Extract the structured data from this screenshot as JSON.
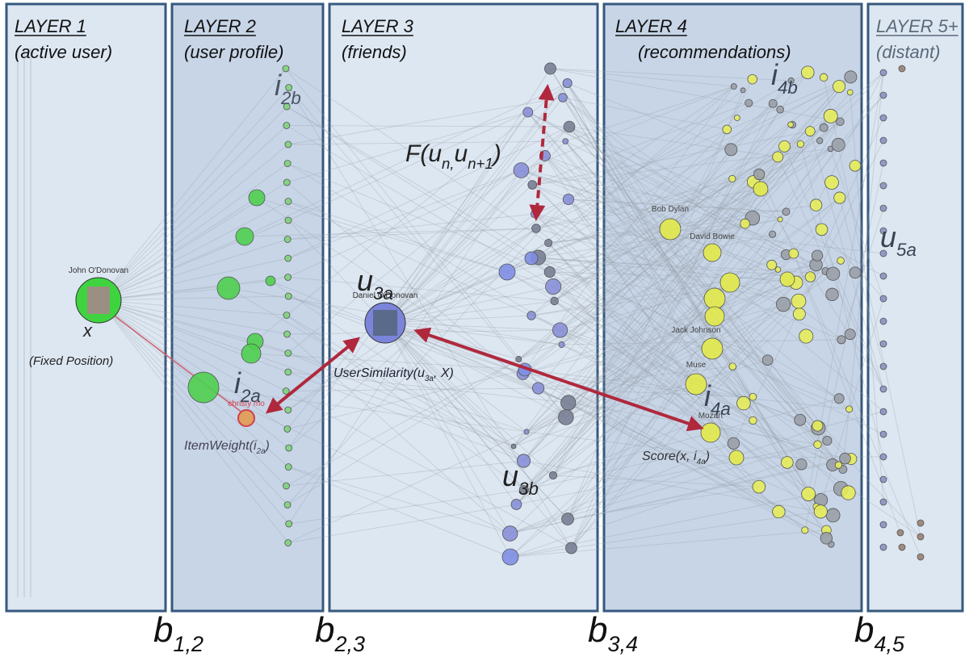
{
  "layers": [
    {
      "title": "LAYER 1",
      "subtitle": "(active user)"
    },
    {
      "title": "LAYER 2",
      "subtitle": "(user profile)"
    },
    {
      "title": "LAYER 3",
      "subtitle": "(friends)"
    },
    {
      "title": "LAYER 4",
      "subtitle": "(recommendations)"
    },
    {
      "title": "LAYER 5+",
      "subtitle": "(distant)"
    }
  ],
  "boundaries": [
    {
      "base": "b",
      "sub": "1,2"
    },
    {
      "base": "b",
      "sub": "2,3"
    },
    {
      "base": "b",
      "sub": "3,4"
    },
    {
      "base": "b",
      "sub": "4,5"
    }
  ],
  "nodes": [
    {
      "label": "John O'Donovan"
    },
    {
      "label": "Daniel O'Donovan"
    },
    {
      "label": "Bob Dylan"
    },
    {
      "label": "David Bowie"
    },
    {
      "label": "Jack Johnson"
    },
    {
      "label": "Muse"
    },
    {
      "label": "Mozart"
    },
    {
      "label": "christy mo"
    }
  ],
  "annotations": [
    {
      "parts": [
        {
          "text": "x"
        }
      ]
    },
    {
      "parts": [
        {
          "text": "(Fixed Position)"
        }
      ]
    },
    {
      "parts": [
        {
          "text": "i"
        },
        {
          "sub": "2b"
        }
      ]
    },
    {
      "parts": [
        {
          "text": "i"
        },
        {
          "sub": "2a"
        }
      ]
    },
    {
      "parts": [
        {
          "text": "ItemWeight(i"
        },
        {
          "sub": "2a"
        },
        {
          "text": ")"
        }
      ]
    },
    {
      "parts": [
        {
          "text": "F(u"
        },
        {
          "sub": "n,"
        },
        {
          "text": "u"
        },
        {
          "sub": "n+1"
        },
        {
          "text": ")"
        }
      ]
    },
    {
      "parts": [
        {
          "text": "u"
        },
        {
          "sub": "3a"
        }
      ]
    },
    {
      "parts": [
        {
          "text": "UserSimilarity(u"
        },
        {
          "sub": "3a"
        },
        {
          "text": ", X)"
        }
      ]
    },
    {
      "parts": [
        {
          "text": "u"
        },
        {
          "sub": "3b"
        }
      ]
    },
    {
      "parts": [
        {
          "text": "i"
        },
        {
          "sub": "4b"
        }
      ]
    },
    {
      "parts": [
        {
          "text": "i"
        },
        {
          "sub": "4a"
        }
      ]
    },
    {
      "parts": [
        {
          "text": "Score(x, i"
        },
        {
          "sub": "4a"
        },
        {
          "text": ")"
        }
      ]
    },
    {
      "parts": [
        {
          "text": "u"
        },
        {
          "sub": "5a"
        }
      ]
    }
  ]
}
